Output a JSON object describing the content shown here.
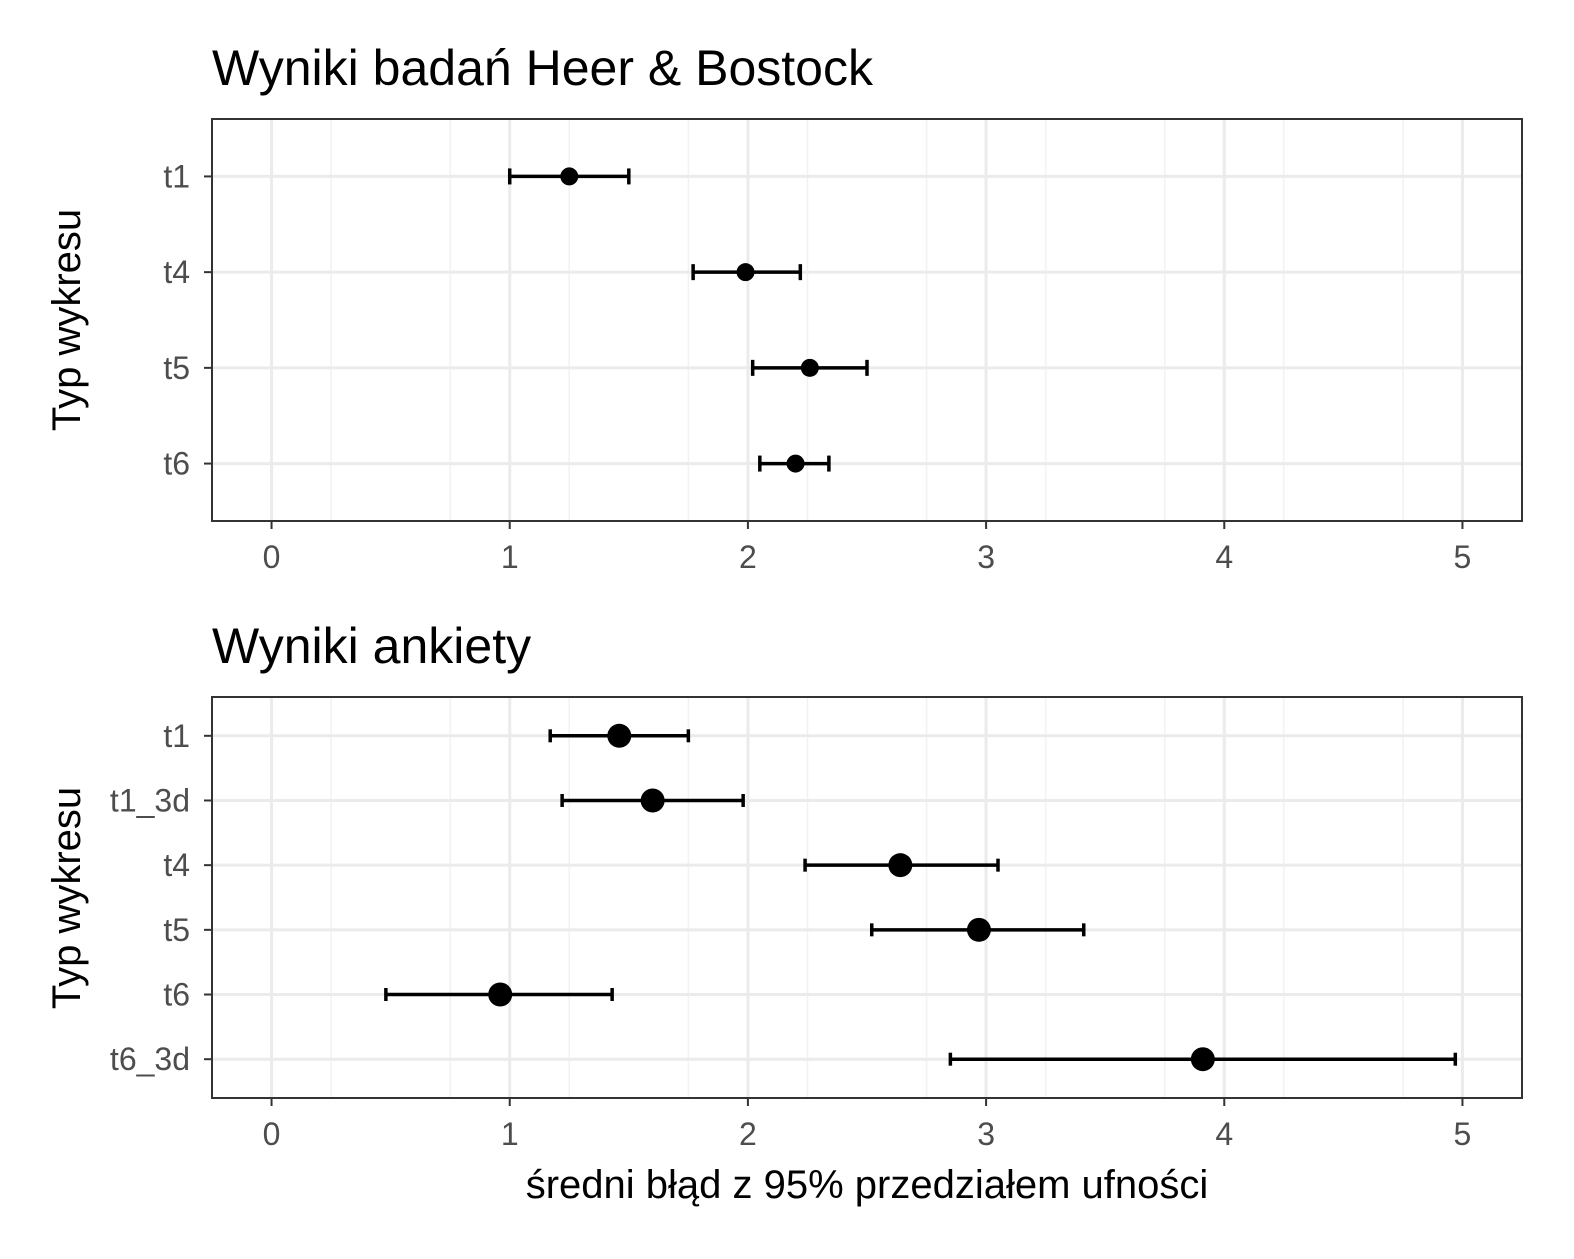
{
  "chart_data": [
    {
      "type": "errorbar",
      "title": "Wyniki badań Heer & Bostock",
      "ylabel": "Typ wykresu",
      "xlabel": "",
      "xlim": [
        -0.25,
        5.25
      ],
      "x_ticks": [
        "0",
        "1",
        "2",
        "3",
        "4",
        "5"
      ],
      "categories": [
        "t1",
        "t4",
        "t5",
        "t6"
      ],
      "points": [
        {
          "category": "t1",
          "mean": 1.25,
          "lower": 1.0,
          "upper": 1.5
        },
        {
          "category": "t4",
          "mean": 1.99,
          "lower": 1.77,
          "upper": 2.22
        },
        {
          "category": "t5",
          "mean": 2.26,
          "lower": 2.02,
          "upper": 2.5
        },
        {
          "category": "t6",
          "mean": 2.2,
          "lower": 2.05,
          "upper": 2.34
        }
      ],
      "grid": true
    },
    {
      "type": "errorbar",
      "title": "Wyniki ankiety",
      "ylabel": "Typ wykresu",
      "xlabel": "średni błąd z 95% przedziałem ufności",
      "xlim": [
        -0.25,
        5.25
      ],
      "x_ticks": [
        "0",
        "1",
        "2",
        "3",
        "4",
        "5"
      ],
      "categories": [
        "t1",
        "t1_3d",
        "t4",
        "t5",
        "t6",
        "t6_3d"
      ],
      "points": [
        {
          "category": "t1",
          "mean": 1.46,
          "lower": 1.17,
          "upper": 1.75
        },
        {
          "category": "t1_3d",
          "mean": 1.6,
          "lower": 1.22,
          "upper": 1.98
        },
        {
          "category": "t4",
          "mean": 2.64,
          "lower": 2.24,
          "upper": 3.05
        },
        {
          "category": "t5",
          "mean": 2.97,
          "lower": 2.52,
          "upper": 3.41
        },
        {
          "category": "t6",
          "mean": 0.96,
          "lower": 0.48,
          "upper": 1.43
        },
        {
          "category": "t6_3d",
          "mean": 3.91,
          "lower": 2.85,
          "upper": 4.97
        }
      ],
      "grid": true
    }
  ]
}
